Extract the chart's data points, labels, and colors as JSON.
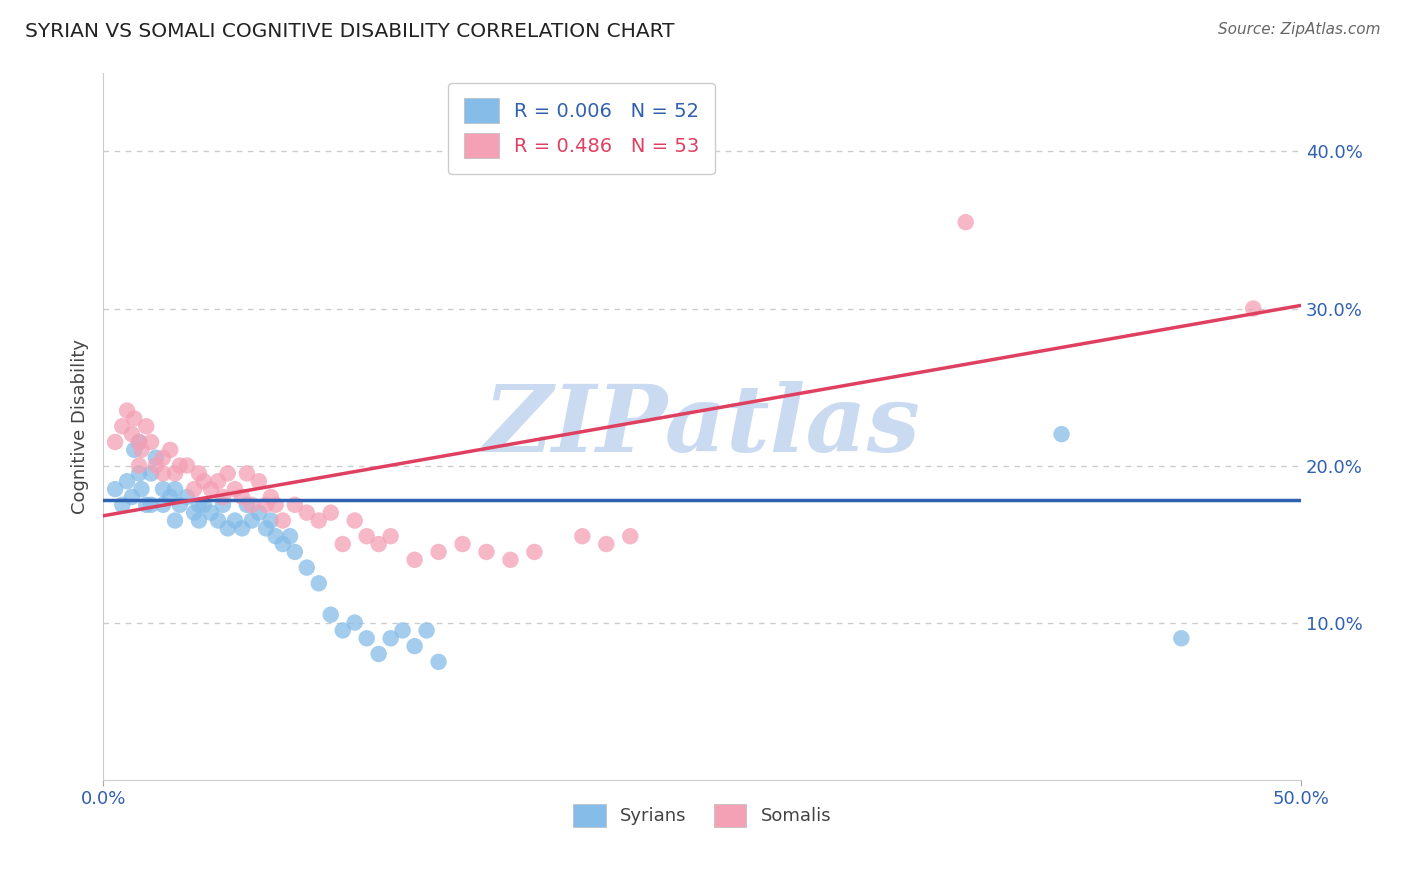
{
  "title": "SYRIAN VS SOMALI COGNITIVE DISABILITY CORRELATION CHART",
  "source": "Source: ZipAtlas.com",
  "ylabel": "Cognitive Disability",
  "xlim": [
    0.0,
    0.5
  ],
  "ylim": [
    0.0,
    0.45
  ],
  "yticks": [
    0.1,
    0.2,
    0.3,
    0.4
  ],
  "ytick_labels": [
    "10.0%",
    "20.0%",
    "30.0%",
    "40.0%"
  ],
  "xticks": [
    0.0,
    0.5
  ],
  "xtick_labels": [
    "0.0%",
    "50.0%"
  ],
  "grid_color": "#cccccc",
  "background_color": "#ffffff",
  "syrians_color": "#85bce8",
  "somalis_color": "#f4a0b5",
  "syrian_line_color": "#3060b0",
  "somali_line_color": "#e04060",
  "legend_syrian": "R = 0.006   N = 52",
  "legend_somali": "R = 0.486   N = 53",
  "watermark": "ZIPatlas",
  "watermark_color": "#c5d8f0",
  "syrian_line_y0": 0.178,
  "syrian_line_y1": 0.178,
  "somali_line_y0": 0.168,
  "somali_line_y1": 0.302,
  "syrians_x": [
    0.005,
    0.008,
    0.01,
    0.012,
    0.013,
    0.015,
    0.015,
    0.016,
    0.018,
    0.02,
    0.02,
    0.022,
    0.025,
    0.025,
    0.028,
    0.03,
    0.03,
    0.032,
    0.035,
    0.038,
    0.04,
    0.04,
    0.042,
    0.045,
    0.048,
    0.05,
    0.052,
    0.055,
    0.058,
    0.06,
    0.062,
    0.065,
    0.068,
    0.07,
    0.072,
    0.075,
    0.078,
    0.08,
    0.085,
    0.09,
    0.095,
    0.1,
    0.105,
    0.11,
    0.115,
    0.12,
    0.125,
    0.13,
    0.135,
    0.14,
    0.4,
    0.45
  ],
  "syrians_y": [
    0.185,
    0.175,
    0.19,
    0.18,
    0.21,
    0.195,
    0.215,
    0.185,
    0.175,
    0.195,
    0.175,
    0.205,
    0.185,
    0.175,
    0.18,
    0.185,
    0.165,
    0.175,
    0.18,
    0.17,
    0.175,
    0.165,
    0.175,
    0.17,
    0.165,
    0.175,
    0.16,
    0.165,
    0.16,
    0.175,
    0.165,
    0.17,
    0.16,
    0.165,
    0.155,
    0.15,
    0.155,
    0.145,
    0.135,
    0.125,
    0.105,
    0.095,
    0.1,
    0.09,
    0.08,
    0.09,
    0.095,
    0.085,
    0.095,
    0.075,
    0.22,
    0.09
  ],
  "somalis_x": [
    0.005,
    0.008,
    0.01,
    0.012,
    0.013,
    0.015,
    0.015,
    0.016,
    0.018,
    0.02,
    0.022,
    0.025,
    0.025,
    0.028,
    0.03,
    0.032,
    0.035,
    0.038,
    0.04,
    0.042,
    0.045,
    0.048,
    0.05,
    0.052,
    0.055,
    0.058,
    0.06,
    0.062,
    0.065,
    0.068,
    0.07,
    0.072,
    0.075,
    0.08,
    0.085,
    0.09,
    0.095,
    0.1,
    0.105,
    0.11,
    0.115,
    0.12,
    0.13,
    0.14,
    0.15,
    0.16,
    0.17,
    0.18,
    0.2,
    0.21,
    0.22,
    0.36,
    0.48
  ],
  "somalis_y": [
    0.215,
    0.225,
    0.235,
    0.22,
    0.23,
    0.215,
    0.2,
    0.21,
    0.225,
    0.215,
    0.2,
    0.205,
    0.195,
    0.21,
    0.195,
    0.2,
    0.2,
    0.185,
    0.195,
    0.19,
    0.185,
    0.19,
    0.18,
    0.195,
    0.185,
    0.18,
    0.195,
    0.175,
    0.19,
    0.175,
    0.18,
    0.175,
    0.165,
    0.175,
    0.17,
    0.165,
    0.17,
    0.15,
    0.165,
    0.155,
    0.15,
    0.155,
    0.14,
    0.145,
    0.15,
    0.145,
    0.14,
    0.145,
    0.155,
    0.15,
    0.155,
    0.355,
    0.3
  ]
}
